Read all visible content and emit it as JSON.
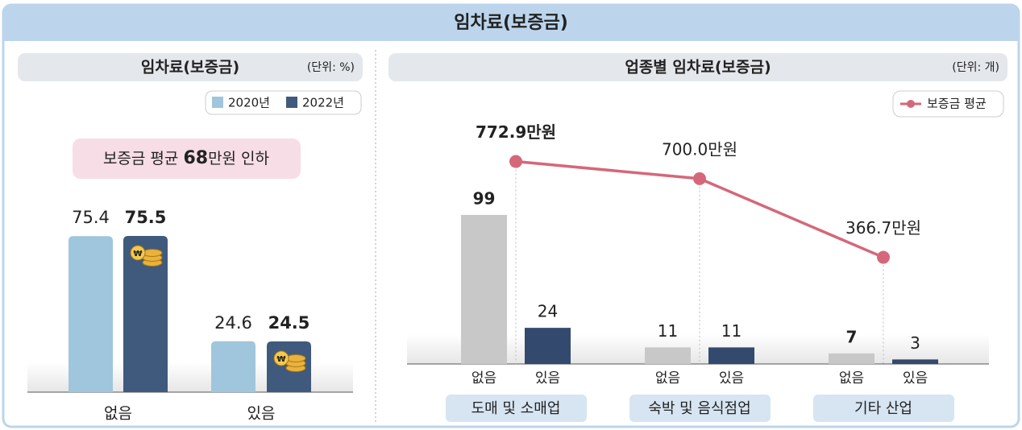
{
  "title": "임차료(보증금)",
  "chart_data": [
    {
      "type": "bar",
      "title": "임차료(보증금)",
      "unit": "(단위: %)",
      "annotation": [
        "보증금 평균 ",
        "68",
        "만원 인하"
      ],
      "categories": [
        "없음",
        "있음"
      ],
      "series": [
        {
          "name": "2020년",
          "color": "#9fc6dc",
          "values": [
            75.4,
            24.6
          ]
        },
        {
          "name": "2022년",
          "color": "#3f5a7c",
          "values": [
            75.5,
            24.5
          ]
        }
      ]
    },
    {
      "type": "bar+line",
      "title": "업종별 임차료(보증금)",
      "unit": "(단위: 개)",
      "categories": [
        "도매 및 소매업",
        "숙박 및 음식점업",
        "기타 산업"
      ],
      "series": [
        {
          "name": "없음",
          "color": "#c8c8c8",
          "values": [
            99,
            11,
            7
          ]
        },
        {
          "name": "있음",
          "color": "#34496e",
          "values": [
            24,
            11,
            3
          ]
        },
        {
          "name": "보증금 평균",
          "type": "line",
          "color": "#d4687a",
          "values": [
            772.9,
            700.0,
            366.7
          ],
          "value_labels": [
            "772.9만원",
            "700.0만원",
            "366.7만원"
          ]
        }
      ]
    }
  ]
}
